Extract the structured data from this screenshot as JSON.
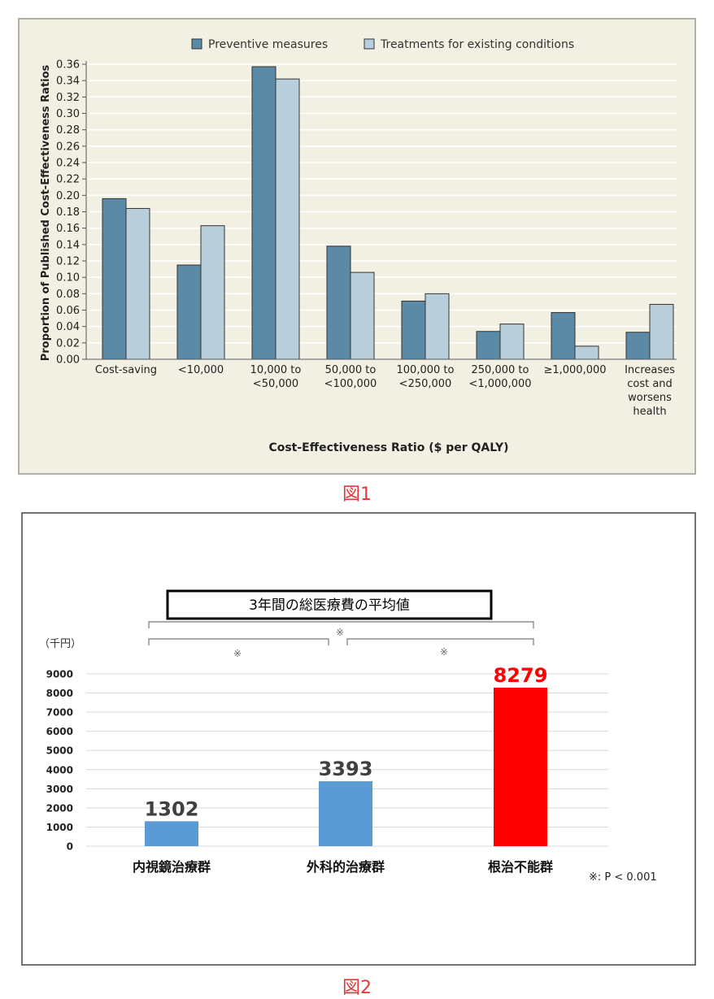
{
  "figure1": {
    "caption": "図1",
    "chart_data": {
      "type": "bar",
      "title": "",
      "xlabel": "Cost-Effectiveness Ratio ($ per QALY)",
      "ylabel": "Proportion of Published Cost-Effectiveness Ratios",
      "ylim": [
        0,
        0.36
      ],
      "yticks": [
        "0.00",
        "0.02",
        "0.04",
        "0.06",
        "0.08",
        "0.10",
        "0.12",
        "0.14",
        "0.16",
        "0.18",
        "0.20",
        "0.22",
        "0.24",
        "0.26",
        "0.28",
        "0.30",
        "0.32",
        "0.34",
        "0.36"
      ],
      "grid": true,
      "legend_position": "top",
      "categories": [
        [
          "Cost-saving"
        ],
        [
          "<10,000"
        ],
        [
          "10,000 to",
          "<50,000"
        ],
        [
          "50,000 to",
          "<100,000"
        ],
        [
          "100,000 to",
          "<250,000"
        ],
        [
          "250,000 to",
          "<1,000,000"
        ],
        [
          "≥1,000,000"
        ],
        [
          "Increases",
          "cost and",
          "worsens",
          "health"
        ]
      ],
      "series": [
        {
          "name": "Preventive measures",
          "color": "#5b8aa6",
          "values": [
            0.196,
            0.115,
            0.357,
            0.138,
            0.071,
            0.034,
            0.057,
            0.033
          ]
        },
        {
          "name": "Treatments for existing conditions",
          "color": "#b9cedb",
          "values": [
            0.184,
            0.163,
            0.342,
            0.106,
            0.08,
            0.043,
            0.016,
            0.067
          ]
        }
      ]
    }
  },
  "figure2": {
    "caption": "図2",
    "chart_data": {
      "type": "bar",
      "title": "3年間の総医療費の平均値",
      "unit_label": "（千円）",
      "ylim": [
        0,
        9000
      ],
      "yticks": [
        "0",
        "1000",
        "2000",
        "3000",
        "4000",
        "5000",
        "6000",
        "7000",
        "8000",
        "9000"
      ],
      "grid": true,
      "categories": [
        "内視鏡治療群",
        "外科的治療群",
        "根治不能群"
      ],
      "values": [
        1302,
        3393,
        8279
      ],
      "value_labels": [
        "1302",
        "3393",
        "8279"
      ],
      "bar_colors": [
        "#5b9bd5",
        "#5b9bd5",
        "#ff0000"
      ],
      "value_label_colors": [
        "#404040",
        "#404040",
        "#ff0000"
      ],
      "significance_marks": [
        "※",
        "※",
        "※"
      ],
      "footnote": "※: P < 0.001"
    }
  }
}
